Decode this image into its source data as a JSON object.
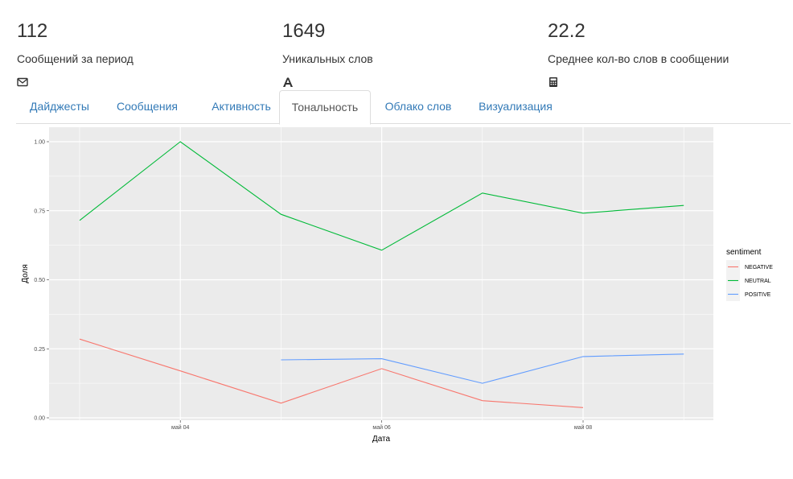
{
  "stats": [
    {
      "value": "112",
      "label": "Сообщений за период",
      "icon": "envelope-icon"
    },
    {
      "value": "1649",
      "label": "Уникальных слов",
      "icon": "font-icon"
    },
    {
      "value": "22.2",
      "label": "Среднее кол-во слов в сообщении",
      "icon": "calculator-icon"
    }
  ],
  "tabs": [
    {
      "label": "Дайджесты",
      "active": false
    },
    {
      "label": "Сообщения",
      "active": false
    },
    {
      "label": "Активность",
      "active": false
    },
    {
      "label": "Тональность",
      "active": true
    },
    {
      "label": "Облако слов",
      "active": false
    },
    {
      "label": "Визуализация",
      "active": false
    }
  ],
  "colors": {
    "link": "#337ab7",
    "panel": "#ebebeb",
    "grid": "#ffffff"
  },
  "chart_data": {
    "type": "line",
    "title": "",
    "xlabel": "Дата",
    "ylabel": "Доля",
    "x": [
      "май 03",
      "май 04",
      "май 05",
      "май 06",
      "май 07",
      "май 08",
      "май 09"
    ],
    "x_ticks": [
      "май 04",
      "май 06",
      "май 08"
    ],
    "y_ticks": [
      "0.00",
      "0.25",
      "0.50",
      "0.75",
      "1.00"
    ],
    "ylim": [
      0,
      1
    ],
    "legend_title": "sentiment",
    "legend_position": "right",
    "series": [
      {
        "name": "NEGATIVE",
        "color": "#f8766d",
        "values": [
          0.285,
          0.17,
          0.053,
          0.178,
          0.062,
          0.037,
          null
        ]
      },
      {
        "name": "NEUTRAL",
        "color": "#00ba38",
        "values": [
          0.715,
          1.0,
          0.737,
          0.607,
          0.814,
          0.741,
          0.769
        ]
      },
      {
        "name": "POSITIVE",
        "color": "#619cff",
        "values": [
          null,
          null,
          0.21,
          0.214,
          0.125,
          0.222,
          0.231
        ]
      }
    ]
  }
}
